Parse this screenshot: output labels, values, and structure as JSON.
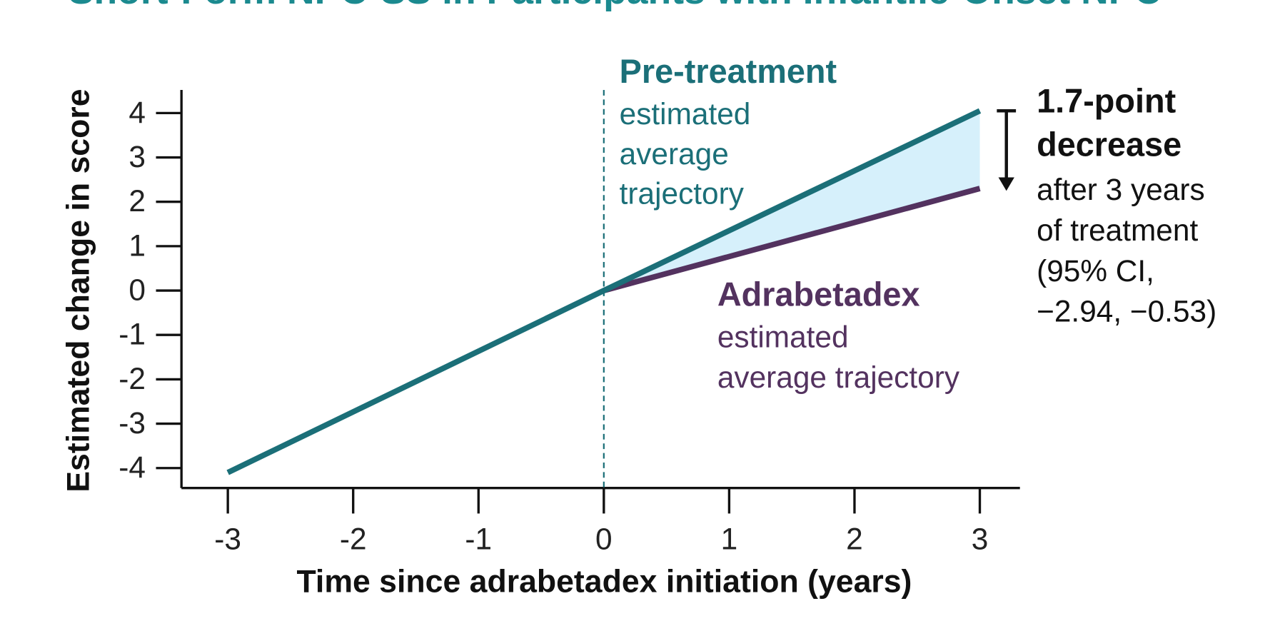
{
  "chart_data": {
    "type": "line",
    "title": "Short-Form NPC-SS in Participants with Infantile-Onset NPC",
    "x_label": "Time since adrabetadex initiation (years)",
    "y_label": "Estimated change in score",
    "x": [
      -3,
      0,
      3
    ],
    "series": [
      {
        "name": "Pre-treatment",
        "color": "#1b6f78",
        "values": [
          -4.1,
          0,
          4.05
        ],
        "description": [
          "estimated",
          "average",
          "trajectory"
        ]
      },
      {
        "name": "Adrabetadex",
        "color": "#53325f",
        "values": [
          null,
          0,
          2.3
        ],
        "description": [
          "estimated",
          "average trajectory"
        ]
      }
    ],
    "shade_color": "#d6f0fb",
    "reference_x": 0,
    "difference_note": {
      "headline": [
        "1.7-point",
        "decrease"
      ],
      "lines": [
        "after 3 years",
        "of treatment",
        "(95% CI,",
        "−2.94, −0.53)"
      ]
    },
    "xlim": [
      -3.37,
      3.32
    ],
    "ylim": [
      -4.45,
      4.52
    ],
    "xticks": [
      -3,
      -2,
      -1,
      0,
      1,
      2,
      3
    ],
    "yticks": [
      -4,
      -3,
      -2,
      -1,
      0,
      1,
      2,
      3,
      4
    ]
  }
}
